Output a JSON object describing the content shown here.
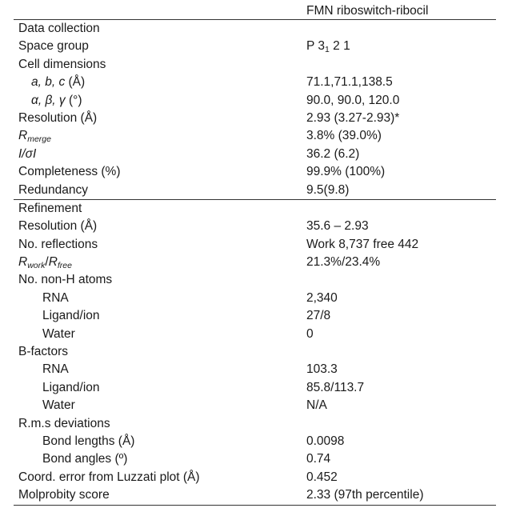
{
  "table": {
    "column_header": "FMN riboswitch-ribocil",
    "data_collection": {
      "heading": "Data collection",
      "space_group": {
        "label": "Space group",
        "value_main": "P 3",
        "value_sub": "1",
        "value_rest": " 2 1"
      },
      "cell_dimensions": {
        "label": "Cell dimensions"
      },
      "abc": {
        "label_italic": "a, b, c",
        "label_rest": " (Å)",
        "value": "71.1,71.1,138.5"
      },
      "angles": {
        "label_italic": "α, β, γ",
        "label_rest": " (°)",
        "value": "90.0, 90.0, 120.0"
      },
      "resolution": {
        "label": "Resolution (Å)",
        "value": "2.93 (3.27-2.93)*"
      },
      "rmerge": {
        "label_main": "R",
        "label_sub": "merge",
        "value": "3.8% (39.0%)"
      },
      "i_sigma": {
        "label": "I/σI",
        "value": "36.2 (6.2)"
      },
      "completeness": {
        "label": "Completeness (%)",
        "value": "99.9% (100%)"
      },
      "redundancy": {
        "label": "Redundancy",
        "value": "9.5(9.8)"
      }
    },
    "refinement": {
      "heading": "Refinement",
      "resolution": {
        "label": "Resolution (Å)",
        "value": "35.6 – 2.93"
      },
      "reflections": {
        "label": "No. reflections",
        "value": "Work 8,737 free 442"
      },
      "rwork_rfree": {
        "label_r1": "R",
        "label_sub1": "work",
        "label_slash": "/",
        "label_r2": "R",
        "label_sub2": "free",
        "value": "21.3%/23.4%"
      },
      "non_h_atoms": {
        "label": "No. non-H atoms"
      },
      "atoms_rna": {
        "label": "RNA",
        "value": "2,340"
      },
      "atoms_ligand": {
        "label": "Ligand/ion",
        "value": "27/8"
      },
      "atoms_water": {
        "label": "Water",
        "value": "0"
      },
      "b_factors": {
        "label": "B-factors"
      },
      "b_rna": {
        "label": "RNA",
        "value": "103.3"
      },
      "b_ligand": {
        "label": "Ligand/ion",
        "value": "85.8/113.7"
      },
      "b_water": {
        "label": "Water",
        "value": "N/A"
      },
      "rms": {
        "label": "R.m.s deviations"
      },
      "bond_lengths": {
        "label": "Bond lengths (Å)",
        "value": "0.0098"
      },
      "bond_angles": {
        "label": "Bond angles (º)",
        "value": "0.74"
      },
      "coord_error": {
        "label": "Coord. error from Luzzati plot (Å)",
        "value": "0.452"
      },
      "molprobity": {
        "label": "Molprobity score",
        "value": "2.33 (97th percentile)"
      }
    }
  }
}
